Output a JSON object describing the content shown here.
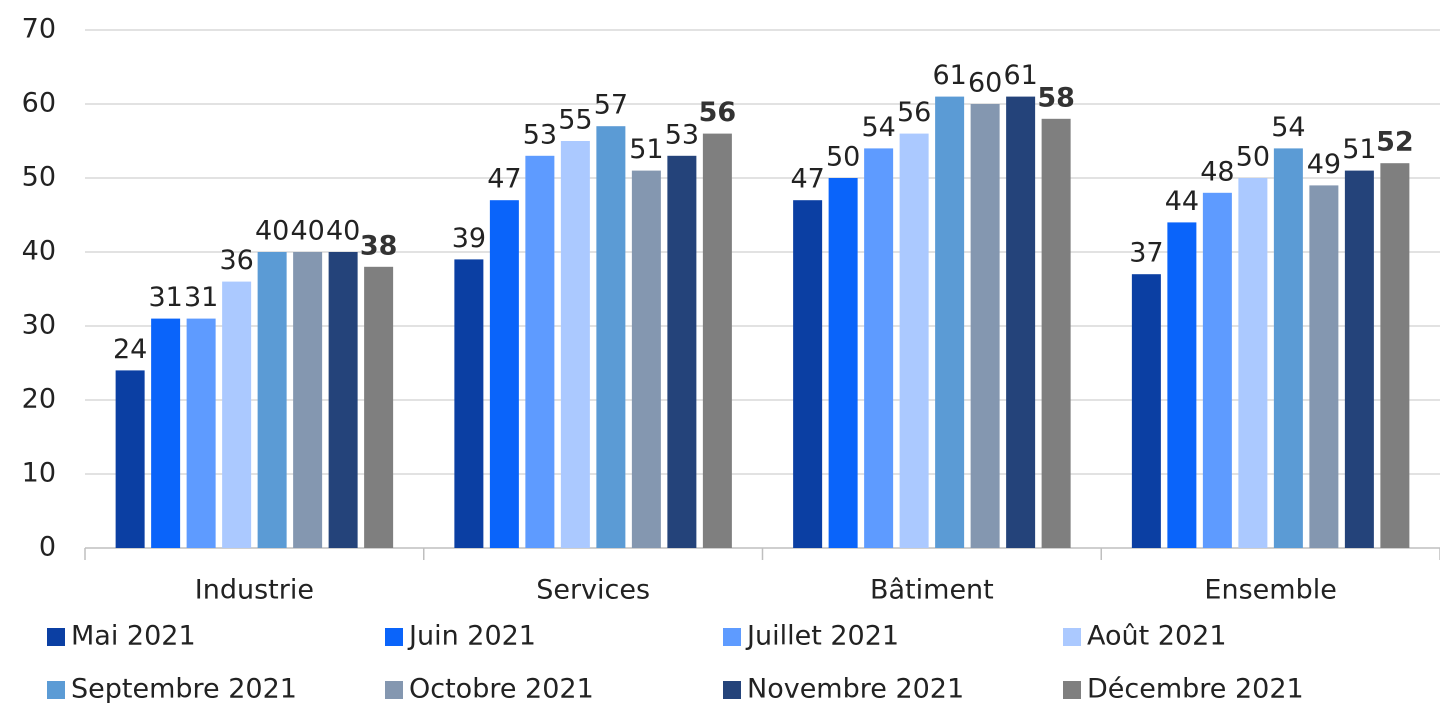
{
  "chart_data": {
    "type": "bar",
    "categories": [
      "Industrie",
      "Services",
      "Bâtiment",
      "Ensemble"
    ],
    "series": [
      {
        "name": "Mai 2021",
        "color": "#0b3fa3",
        "values": [
          24,
          39,
          47,
          37
        ]
      },
      {
        "name": "Juin 2021",
        "color": "#0a64fa",
        "values": [
          31,
          47,
          50,
          44
        ]
      },
      {
        "name": "Juillet 2021",
        "color": "#5e9bff",
        "values": [
          31,
          53,
          54,
          48
        ]
      },
      {
        "name": "Août 2021",
        "color": "#abc9ff",
        "values": [
          36,
          55,
          56,
          50
        ]
      },
      {
        "name": "Septembre 2021",
        "color": "#5b9bd5",
        "values": [
          40,
          57,
          61,
          54
        ]
      },
      {
        "name": "Octobre 2021",
        "color": "#8497b0",
        "values": [
          40,
          51,
          60,
          49
        ]
      },
      {
        "name": "Novembre 2021",
        "color": "#24437a",
        "values": [
          40,
          53,
          61,
          51
        ]
      },
      {
        "name": "Décembre 2021",
        "color": "#7f7f7f",
        "values": [
          38,
          56,
          58,
          52
        ]
      }
    ],
    "ylim": [
      0,
      70
    ],
    "yticks": [
      0,
      10,
      20,
      30,
      40,
      50,
      60,
      70
    ],
    "grid": true,
    "legend": "bottom"
  }
}
